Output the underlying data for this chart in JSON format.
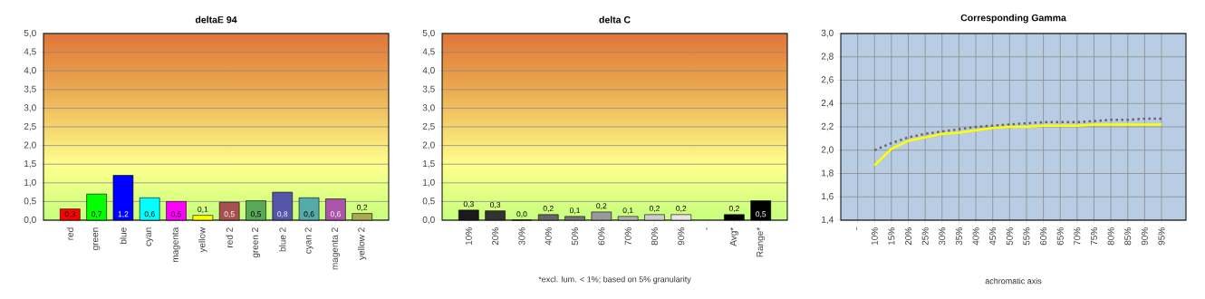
{
  "chart_data": [
    {
      "type": "bar",
      "title": "deltaE 94",
      "categories": [
        "red",
        "green",
        "blue",
        "cyan",
        "magenta",
        "yellow",
        "red 2",
        "green 2",
        "blue 2",
        "cyan 2",
        "magenta 2",
        "yellow 2"
      ],
      "values": [
        0.3,
        0.7,
        1.2,
        0.6,
        0.5,
        0.13,
        0.48,
        0.52,
        0.75,
        0.6,
        0.57,
        0.18
      ],
      "value_labels": [
        "0,3",
        "0,7",
        "1,2",
        "0,6",
        "0,5",
        "0,1",
        "0,5",
        "0,5",
        "0,8",
        "0,6",
        "0,6",
        "0,2"
      ],
      "colors": [
        "#ff0000",
        "#00ff00",
        "#0000ff",
        "#00ffff",
        "#ff00ff",
        "#ffff00",
        "#a85050",
        "#58a858",
        "#5555aa",
        "#55aaaa",
        "#aa55aa",
        "#aaaa55"
      ],
      "ylim": [
        0,
        5
      ],
      "yticks": [
        {
          "value": 0,
          "label": "0,0"
        },
        {
          "value": 0.5,
          "label": "0,5"
        },
        {
          "value": 1,
          "label": "1,0"
        },
        {
          "value": 1.5,
          "label": "1,5"
        },
        {
          "value": 2,
          "label": "2,0"
        },
        {
          "value": 2.5,
          "label": "2,5"
        },
        {
          "value": 3,
          "label": "3,0"
        },
        {
          "value": 3.5,
          "label": "3,5"
        },
        {
          "value": 4,
          "label": "4,0"
        },
        {
          "value": 4.5,
          "label": "4,5"
        },
        {
          "value": 5,
          "label": "5,0"
        }
      ],
      "grid": "y"
    },
    {
      "type": "bar",
      "title": "delta C",
      "categories": [
        "10%",
        "20%",
        "30%",
        "40%",
        "50%",
        "60%",
        "70%",
        "80%",
        "90%",
        "-",
        "Avg*",
        "Range*"
      ],
      "values": [
        0.27,
        0.25,
        0.0,
        0.15,
        0.1,
        0.22,
        0.1,
        0.15,
        0.15,
        null,
        0.15,
        0.52
      ],
      "value_labels": [
        "0,3",
        "0,3",
        "0,0",
        "0,2",
        "0,1",
        "0,2",
        "0,1",
        "0,2",
        "0,2",
        null,
        "0,2",
        "0,5"
      ],
      "colors": [
        "#1a1a1a",
        "#333333",
        "#4d4d4d",
        "#666666",
        "#777777",
        "#999999",
        "#b3b3b3",
        "#cccccc",
        "#e6e6e6",
        "#000000",
        "#000000",
        "#000000"
      ],
      "ylim": [
        0,
        5
      ],
      "yticks": [
        {
          "value": 0,
          "label": "0,0"
        },
        {
          "value": 0.5,
          "label": "0,5"
        },
        {
          "value": 1,
          "label": "1,0"
        },
        {
          "value": 1.5,
          "label": "1,5"
        },
        {
          "value": 2,
          "label": "2,0"
        },
        {
          "value": 2.5,
          "label": "2,5"
        },
        {
          "value": 3,
          "label": "3,0"
        },
        {
          "value": 3.5,
          "label": "3,5"
        },
        {
          "value": 4,
          "label": "4,0"
        },
        {
          "value": 4.5,
          "label": "4,5"
        },
        {
          "value": 5,
          "label": "5,0"
        }
      ],
      "grid": "y",
      "annotations": [
        "*excl. lum. < 1%; based on 5% granularity"
      ]
    },
    {
      "type": "line",
      "title": "Corresponding Gamma",
      "xlabel": "achromatic axis",
      "categories": [
        "-",
        "10%",
        "15%",
        "20%",
        "25%",
        "30%",
        "35%",
        "40%",
        "45%",
        "50%",
        "55%",
        "60%",
        "65%",
        "70%",
        "75%",
        "80%",
        "85%",
        "90%",
        "95%"
      ],
      "series": [
        {
          "color": "#666666",
          "line_style": "dotted",
          "values": [
            null,
            2.0,
            2.06,
            2.11,
            2.14,
            2.16,
            2.18,
            2.2,
            2.21,
            2.22,
            2.23,
            2.24,
            2.24,
            2.24,
            2.25,
            2.26,
            2.26,
            2.27,
            2.27
          ]
        },
        {
          "color": "#ffff00",
          "line_style": "solid",
          "values": [
            null,
            1.87,
            2.01,
            2.08,
            2.11,
            2.14,
            2.15,
            2.17,
            2.19,
            2.2,
            2.2,
            2.21,
            2.21,
            2.21,
            2.22,
            2.22,
            2.22,
            2.22,
            2.22
          ]
        }
      ],
      "ylim": [
        1.4,
        3.0
      ],
      "yticks": [
        {
          "value": 1.4,
          "label": "1,4"
        },
        {
          "value": 1.6,
          "label": "1,6"
        },
        {
          "value": 1.8,
          "label": "1,8"
        },
        {
          "value": 2.0,
          "label": "2,0"
        },
        {
          "value": 2.2,
          "label": "2,2"
        },
        {
          "value": 2.4,
          "label": "2,4"
        },
        {
          "value": 2.6,
          "label": "2,6"
        },
        {
          "value": 2.8,
          "label": "2,8"
        },
        {
          "value": 3.0,
          "label": "3,0"
        }
      ],
      "grid": true
    }
  ]
}
